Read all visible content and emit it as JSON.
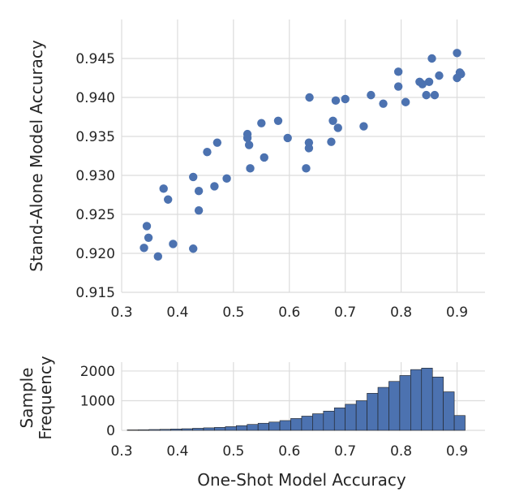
{
  "chart_data": [
    {
      "type": "scatter",
      "xlabel": "",
      "ylabel": "Stand-Alone Model Accuracy",
      "xlim": [
        0.3,
        0.95
      ],
      "ylim": [
        0.915,
        0.95
      ],
      "x_ticks": [
        "0.3",
        "0.4",
        "0.5",
        "0.6",
        "0.7",
        "0.8",
        "0.9"
      ],
      "y_ticks": [
        "0.915",
        "0.920",
        "0.925",
        "0.930",
        "0.935",
        "0.940",
        "0.945"
      ],
      "y_tick_values": [
        0.915,
        0.92,
        0.925,
        0.93,
        0.935,
        0.94,
        0.945
      ],
      "grid": true,
      "color": "#4c72b0",
      "points": [
        [
          0.34,
          0.9207
        ],
        [
          0.345,
          0.9235
        ],
        [
          0.348,
          0.922
        ],
        [
          0.365,
          0.9196
        ],
        [
          0.375,
          0.9283
        ],
        [
          0.383,
          0.9269
        ],
        [
          0.392,
          0.9212
        ],
        [
          0.428,
          0.9206
        ],
        [
          0.428,
          0.9298
        ],
        [
          0.438,
          0.928
        ],
        [
          0.438,
          0.9255
        ],
        [
          0.453,
          0.933
        ],
        [
          0.466,
          0.9286
        ],
        [
          0.471,
          0.9342
        ],
        [
          0.488,
          0.9296
        ],
        [
          0.525,
          0.9353
        ],
        [
          0.525,
          0.9348
        ],
        [
          0.528,
          0.9339
        ],
        [
          0.53,
          0.9309
        ],
        [
          0.55,
          0.9367
        ],
        [
          0.555,
          0.9323
        ],
        [
          0.58,
          0.937
        ],
        [
          0.597,
          0.9348
        ],
        [
          0.63,
          0.9309
        ],
        [
          0.635,
          0.9342
        ],
        [
          0.635,
          0.9335
        ],
        [
          0.636,
          0.94
        ],
        [
          0.675,
          0.9343
        ],
        [
          0.678,
          0.937
        ],
        [
          0.683,
          0.9396
        ],
        [
          0.687,
          0.9361
        ],
        [
          0.7,
          0.9398
        ],
        [
          0.733,
          0.9363
        ],
        [
          0.746,
          0.9403
        ],
        [
          0.768,
          0.9392
        ],
        [
          0.795,
          0.9433
        ],
        [
          0.795,
          0.9414
        ],
        [
          0.808,
          0.9394
        ],
        [
          0.833,
          0.942
        ],
        [
          0.838,
          0.9417
        ],
        [
          0.845,
          0.9403
        ],
        [
          0.85,
          0.942
        ],
        [
          0.855,
          0.945
        ],
        [
          0.86,
          0.9403
        ],
        [
          0.868,
          0.9428
        ],
        [
          0.9,
          0.9457
        ],
        [
          0.9,
          0.9425
        ],
        [
          0.905,
          0.9432
        ],
        [
          0.907,
          0.943
        ]
      ]
    },
    {
      "type": "bar",
      "xlabel": "One-Shot Model Accuracy",
      "ylabel_lines": [
        "Sample",
        "Frequency"
      ],
      "xlim": [
        0.3,
        0.95
      ],
      "ylim": [
        0,
        2300
      ],
      "x_ticks": [
        "0.3",
        "0.4",
        "0.5",
        "0.6",
        "0.7",
        "0.8",
        "0.9"
      ],
      "y_ticks": [
        "0",
        "1000",
        "2000"
      ],
      "y_tick_values": [
        0,
        1000,
        2000
      ],
      "grid": true,
      "color": "#4c72b0",
      "bin_edges": [
        0.31,
        0.3295,
        0.349,
        0.3685,
        0.388,
        0.4075,
        0.427,
        0.4465,
        0.466,
        0.4855,
        0.505,
        0.5245,
        0.544,
        0.5635,
        0.583,
        0.6025,
        0.622,
        0.6415,
        0.661,
        0.6805,
        0.7,
        0.7195,
        0.739,
        0.7585,
        0.778,
        0.7975,
        0.817,
        0.8365,
        0.856,
        0.8755,
        0.895,
        0.9145
      ],
      "counts": [
        15,
        20,
        28,
        35,
        45,
        55,
        70,
        85,
        100,
        125,
        160,
        200,
        240,
        280,
        330,
        400,
        480,
        560,
        650,
        760,
        880,
        1000,
        1250,
        1450,
        1650,
        1850,
        2050,
        2100,
        1800,
        1300,
        500,
        80
      ]
    }
  ]
}
